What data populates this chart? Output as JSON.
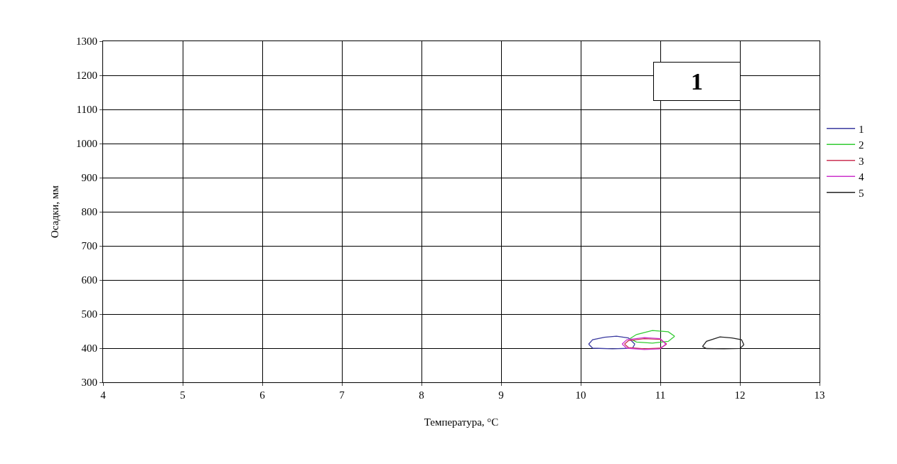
{
  "chart_data": {
    "type": "line",
    "xlabel": "Температура, °C",
    "ylabel": "Осадки, мм",
    "xlim": [
      4,
      13
    ],
    "xticks": [
      4,
      5,
      6,
      7,
      8,
      9,
      10,
      11,
      12,
      13
    ],
    "ylim": [
      300,
      1300
    ],
    "yticks": [
      300,
      400,
      500,
      600,
      700,
      800,
      900,
      1000,
      1100,
      1200,
      1300
    ],
    "grid": true,
    "legend": "right",
    "marker": "none",
    "line_style": "solid",
    "annotations": [
      "1"
    ],
    "series": [
      {
        "name": "1",
        "color": "#3a3aa0",
        "x": [
          10.1,
          10.15,
          10.3,
          10.45,
          10.6,
          10.68
        ],
        "values": [
          412,
          425,
          432,
          435,
          430,
          412
        ]
      },
      {
        "color": "#3a3aa0",
        "x": [
          10.1,
          10.15,
          10.4,
          10.65,
          10.68
        ],
        "values": [
          412,
          400,
          398,
          400,
          412
        ]
      },
      {
        "name": "2",
        "color": "#33cc33",
        "x": [
          10.62,
          10.7,
          10.9,
          11.1,
          11.18
        ],
        "values": [
          428,
          440,
          452,
          448,
          435
        ]
      },
      {
        "color": "#33cc33",
        "x": [
          10.62,
          10.7,
          10.9,
          11.1,
          11.18
        ],
        "values": [
          428,
          418,
          415,
          420,
          435
        ]
      },
      {
        "name": "3",
        "color": "#cc3355",
        "x": [
          10.55,
          10.6,
          10.8,
          11.0,
          11.08
        ],
        "values": [
          412,
          422,
          428,
          426,
          412
        ]
      },
      {
        "color": "#cc3355",
        "x": [
          10.55,
          10.6,
          10.8,
          11.0,
          11.08
        ],
        "values": [
          412,
          402,
          398,
          400,
          412
        ]
      },
      {
        "name": "4",
        "color": "#cc33cc",
        "x": [
          10.52,
          10.58,
          10.8,
          11.0,
          11.07
        ],
        "values": [
          412,
          425,
          431,
          428,
          412
        ]
      },
      {
        "color": "#cc33cc",
        "x": [
          10.52,
          10.58,
          10.8,
          11.0,
          11.07
        ],
        "values": [
          412,
          400,
          396,
          398,
          412
        ]
      },
      {
        "name": "5",
        "color": "#222222",
        "x": [
          11.53,
          11.58,
          11.75,
          11.9,
          12.02,
          12.05
        ],
        "values": [
          405,
          420,
          433,
          430,
          425,
          410
        ]
      },
      {
        "color": "#222222",
        "x": [
          11.53,
          11.58,
          11.8,
          12.0,
          12.05
        ],
        "values": [
          405,
          399,
          398,
          399,
          410
        ]
      }
    ]
  }
}
